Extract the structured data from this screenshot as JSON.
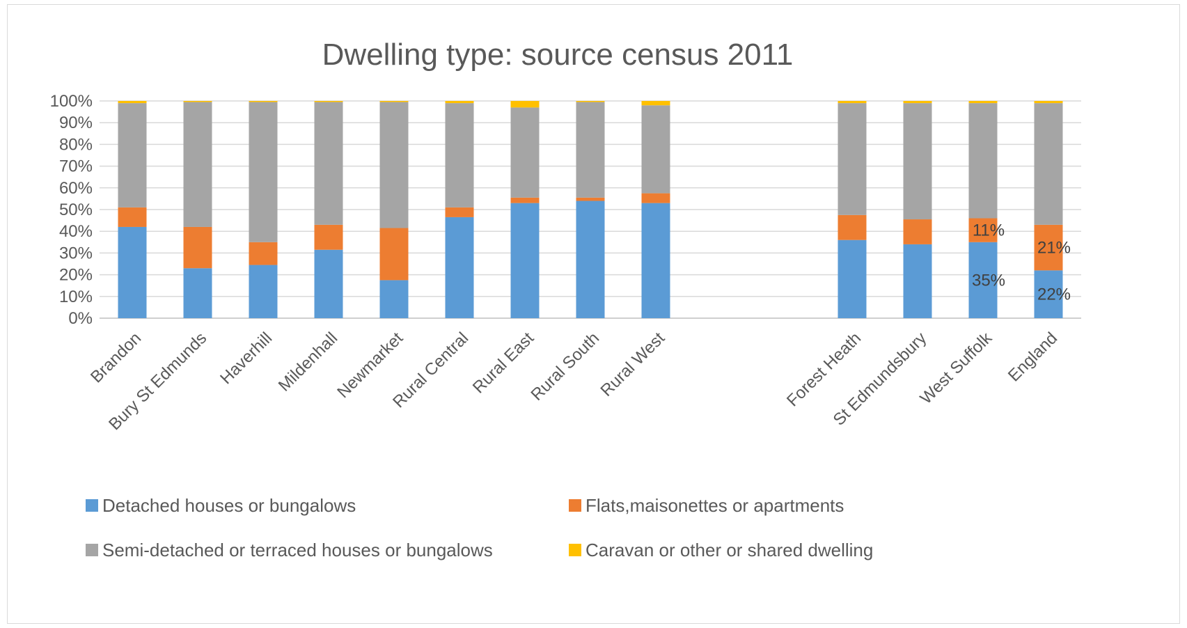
{
  "chart_data": {
    "type": "bar",
    "stacked": true,
    "title": "Dwelling type: source census 2011",
    "xlabel": "",
    "ylabel": "",
    "ylim": [
      0,
      100
    ],
    "y_ticks": [
      "0%",
      "10%",
      "20%",
      "30%",
      "40%",
      "50%",
      "60%",
      "70%",
      "80%",
      "90%",
      "100%"
    ],
    "grid": true,
    "legend_position": "bottom",
    "categories": [
      "Brandon",
      "Bury St Edmunds",
      "Haverhill",
      "Mildenhall",
      "Newmarket",
      "Rural Central",
      "Rural East",
      "Rural South",
      "Rural West",
      "",
      "",
      "Forest Heath",
      "St Edmundsbury",
      "West Suffolk",
      "England"
    ],
    "series": [
      {
        "name": "Detached houses or bungalows",
        "color": "#5b9bd5",
        "values": [
          42,
          23,
          24.5,
          31.5,
          17.5,
          46.5,
          53,
          54,
          53,
          null,
          null,
          36,
          34,
          35,
          22
        ]
      },
      {
        "name": "Flats,maisonettes or apartments",
        "color": "#ed7d31",
        "values": [
          9,
          19,
          10.5,
          11.5,
          24,
          4.5,
          2.5,
          1.5,
          4.5,
          null,
          null,
          11.5,
          11.5,
          11,
          21
        ]
      },
      {
        "name": "Semi-detached or terraced houses or bungalows",
        "color": "#a5a5a5",
        "values": [
          48,
          57.5,
          64.5,
          56.5,
          58,
          48,
          41.5,
          44,
          40.5,
          null,
          null,
          51.5,
          53.5,
          53,
          56
        ]
      },
      {
        "name": "Caravan or other or shared dwelling",
        "color": "#ffc000",
        "values": [
          1,
          0.5,
          0.5,
          0.5,
          0.5,
          1,
          3,
          0.5,
          2,
          null,
          null,
          1,
          1,
          1,
          1
        ]
      }
    ],
    "annotations": [
      {
        "category": "West Suffolk",
        "series": "Detached houses or bungalows",
        "text": "35%"
      },
      {
        "category": "West Suffolk",
        "series": "Flats,maisonettes or apartments",
        "text": "11%"
      },
      {
        "category": "England",
        "series": "Detached houses or bungalows",
        "text": "22%"
      },
      {
        "category": "England",
        "series": "Flats,maisonettes or apartments",
        "text": "21%"
      }
    ]
  }
}
